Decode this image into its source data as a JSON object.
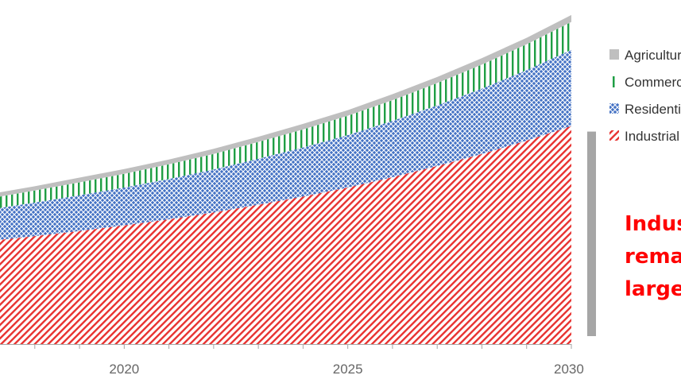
{
  "chart_data": {
    "type": "area",
    "stacked": true,
    "x": [
      2015,
      2016,
      2017,
      2018,
      2019,
      2020,
      2021,
      2022,
      2023,
      2024,
      2025,
      2026,
      2027,
      2028,
      2029,
      2030
    ],
    "series": [
      {
        "name": "Industrial",
        "color": "#e8312f",
        "pattern": "diagonal-hatch",
        "values": [
          22.0,
          23.0,
          24.0,
          25.1,
          26.3,
          27.6,
          29.0,
          30.6,
          32.4,
          34.3,
          36.4,
          38.8,
          41.4,
          44.2,
          47.3,
          50.7
        ]
      },
      {
        "name": "Residential",
        "color": "#4472c4",
        "pattern": "crosshatch",
        "values": [
          6.5,
          6.9,
          7.3,
          7.8,
          8.3,
          8.8,
          9.4,
          10.0,
          10.7,
          11.4,
          12.2,
          13.1,
          14.1,
          15.2,
          16.4,
          17.7
        ]
      },
      {
        "name": "Commercial",
        "color": "#1f9e44",
        "pattern": "vertical-lines",
        "values": [
          2.3,
          2.4,
          2.6,
          2.8,
          3.0,
          3.2,
          3.4,
          3.6,
          3.9,
          4.2,
          4.5,
          4.8,
          5.2,
          5.6,
          6.0,
          6.5
        ]
      },
      {
        "name": "Agriculture",
        "color": "#bfbfbf",
        "pattern": "solid",
        "values": [
          1.0,
          1.0,
          1.0,
          1.0,
          1.1,
          1.1,
          1.1,
          1.2,
          1.2,
          1.3,
          1.3,
          1.4,
          1.4,
          1.5,
          1.5,
          1.6
        ]
      }
    ],
    "xlim": [
      2015,
      2030
    ],
    "ylim": [
      0,
      80
    ],
    "xticks": [
      "2020",
      "2025",
      "2030"
    ],
    "xlabel": "",
    "ylabel": "",
    "legend": {
      "placement": "top-right",
      "entries": [
        "Agriculture",
        "Commercial",
        "Residential",
        "Industrial"
      ]
    },
    "annotation": {
      "lines": [
        "Industrial",
        "remains",
        "largest"
      ],
      "color": "#ff0000",
      "bracket_series": "Industrial",
      "bracket_color": "#a6a6a6"
    }
  }
}
